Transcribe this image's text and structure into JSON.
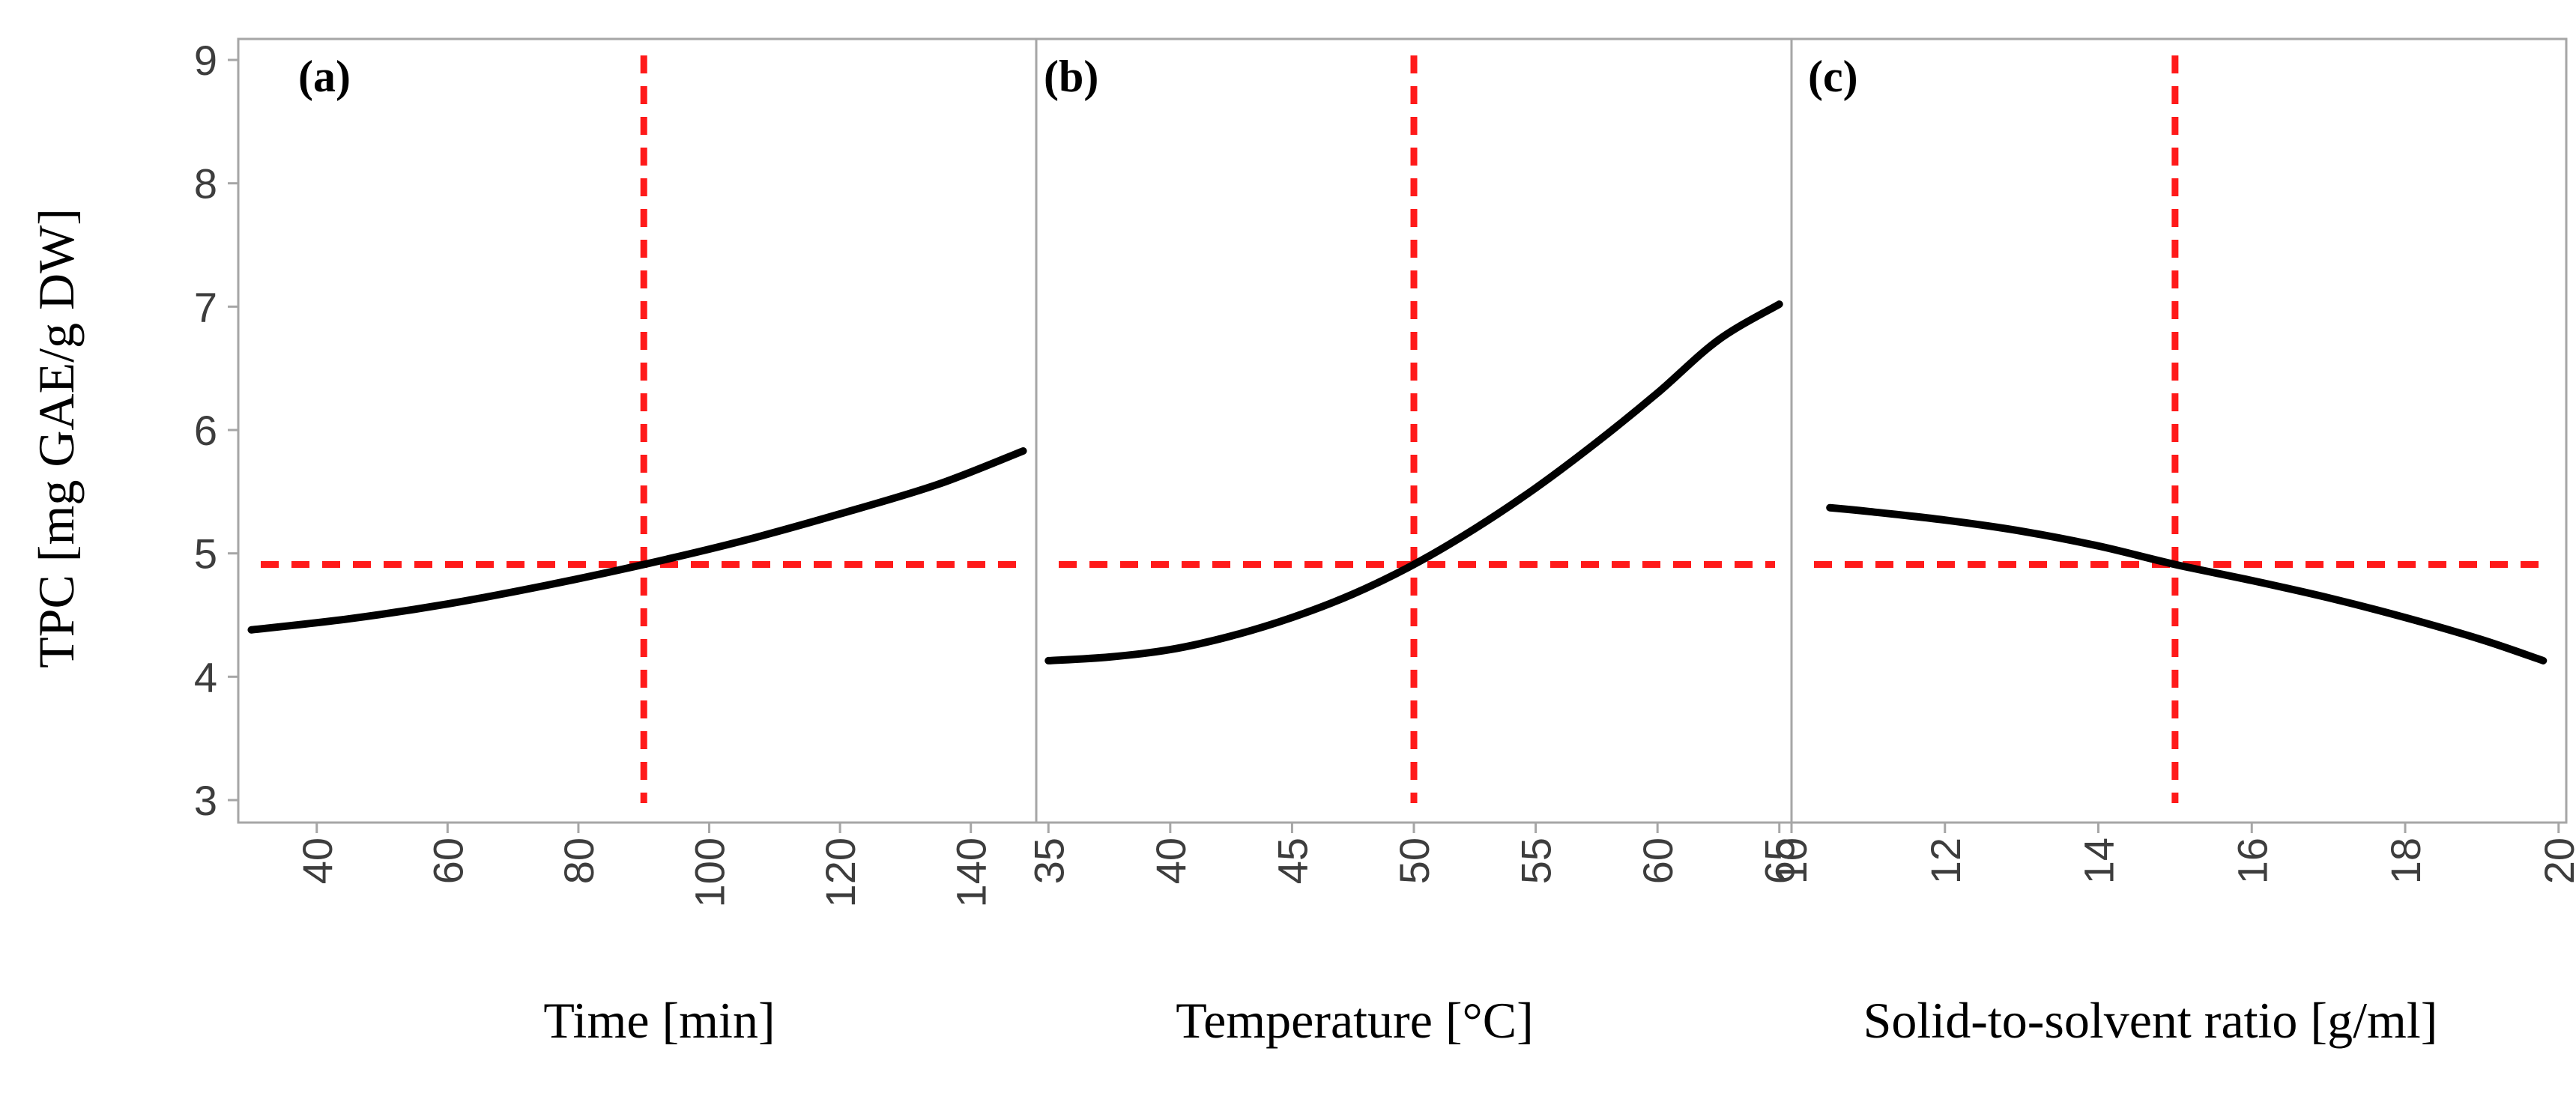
{
  "colors": {
    "curve": "#000000",
    "reference": "#ff1a1a",
    "frame": "#a6a6a6",
    "tick_text": "#3d3d3d"
  },
  "y_axis": {
    "label": "TPC [mg GAE/g DW]",
    "ylim": [
      3,
      9
    ],
    "ticks": [
      "3",
      "4",
      "5",
      "6",
      "7",
      "8",
      "9"
    ]
  },
  "chart_data": [
    {
      "type": "line",
      "panel_label": "(a)",
      "xlabel": "Time [min]",
      "ylabel": "TPC [mg GAE/g DW]",
      "xlim": [
        28,
        150
      ],
      "ylim": [
        3,
        9
      ],
      "x_ticks": [
        "40",
        "60",
        "80",
        "100",
        "120",
        "140"
      ],
      "series": [
        {
          "name": "TPC",
          "x": [
            30,
            45,
            60,
            75,
            90,
            105,
            120,
            135,
            148
          ],
          "y": [
            4.38,
            4.47,
            4.59,
            4.74,
            4.91,
            5.1,
            5.32,
            5.56,
            5.83
          ]
        }
      ],
      "reference": {
        "x": 90,
        "y": 4.91
      }
    },
    {
      "type": "line",
      "panel_label": "(b)",
      "xlabel": "Temperature [°C]",
      "ylabel": "TPC [mg GAE/g DW]",
      "xlim": [
        34.5,
        65.5
      ],
      "ylim": [
        3,
        9
      ],
      "x_ticks": [
        "35",
        "40",
        "45",
        "50",
        "55",
        "60",
        "65"
      ],
      "series": [
        {
          "name": "TPC",
          "x": [
            35,
            37.5,
            40,
            42.5,
            45,
            47.5,
            50,
            52.5,
            55,
            57.5,
            60,
            62.5,
            65
          ],
          "y": [
            4.13,
            4.16,
            4.22,
            4.33,
            4.48,
            4.67,
            4.91,
            5.2,
            5.53,
            5.9,
            6.3,
            6.73,
            7.02
          ]
        }
      ],
      "reference": {
        "x": 50,
        "y": 4.91
      }
    },
    {
      "type": "line",
      "panel_label": "(c)",
      "xlabel": "Solid-to-solvent ratio [g/ml]",
      "ylabel": "TPC [mg GAE/g DW]",
      "xlim": [
        10,
        20.1
      ],
      "ylim": [
        3,
        9
      ],
      "x_ticks": [
        "10",
        "12",
        "14",
        "16",
        "18",
        "20"
      ],
      "series": [
        {
          "name": "TPC",
          "x": [
            10.5,
            11,
            12,
            13,
            14,
            15,
            16,
            17,
            18,
            19,
            19.8
          ],
          "y": [
            5.37,
            5.34,
            5.27,
            5.18,
            5.06,
            4.91,
            4.78,
            4.64,
            4.48,
            4.3,
            4.13
          ]
        }
      ],
      "reference": {
        "x": 15,
        "y": 4.91
      }
    }
  ]
}
